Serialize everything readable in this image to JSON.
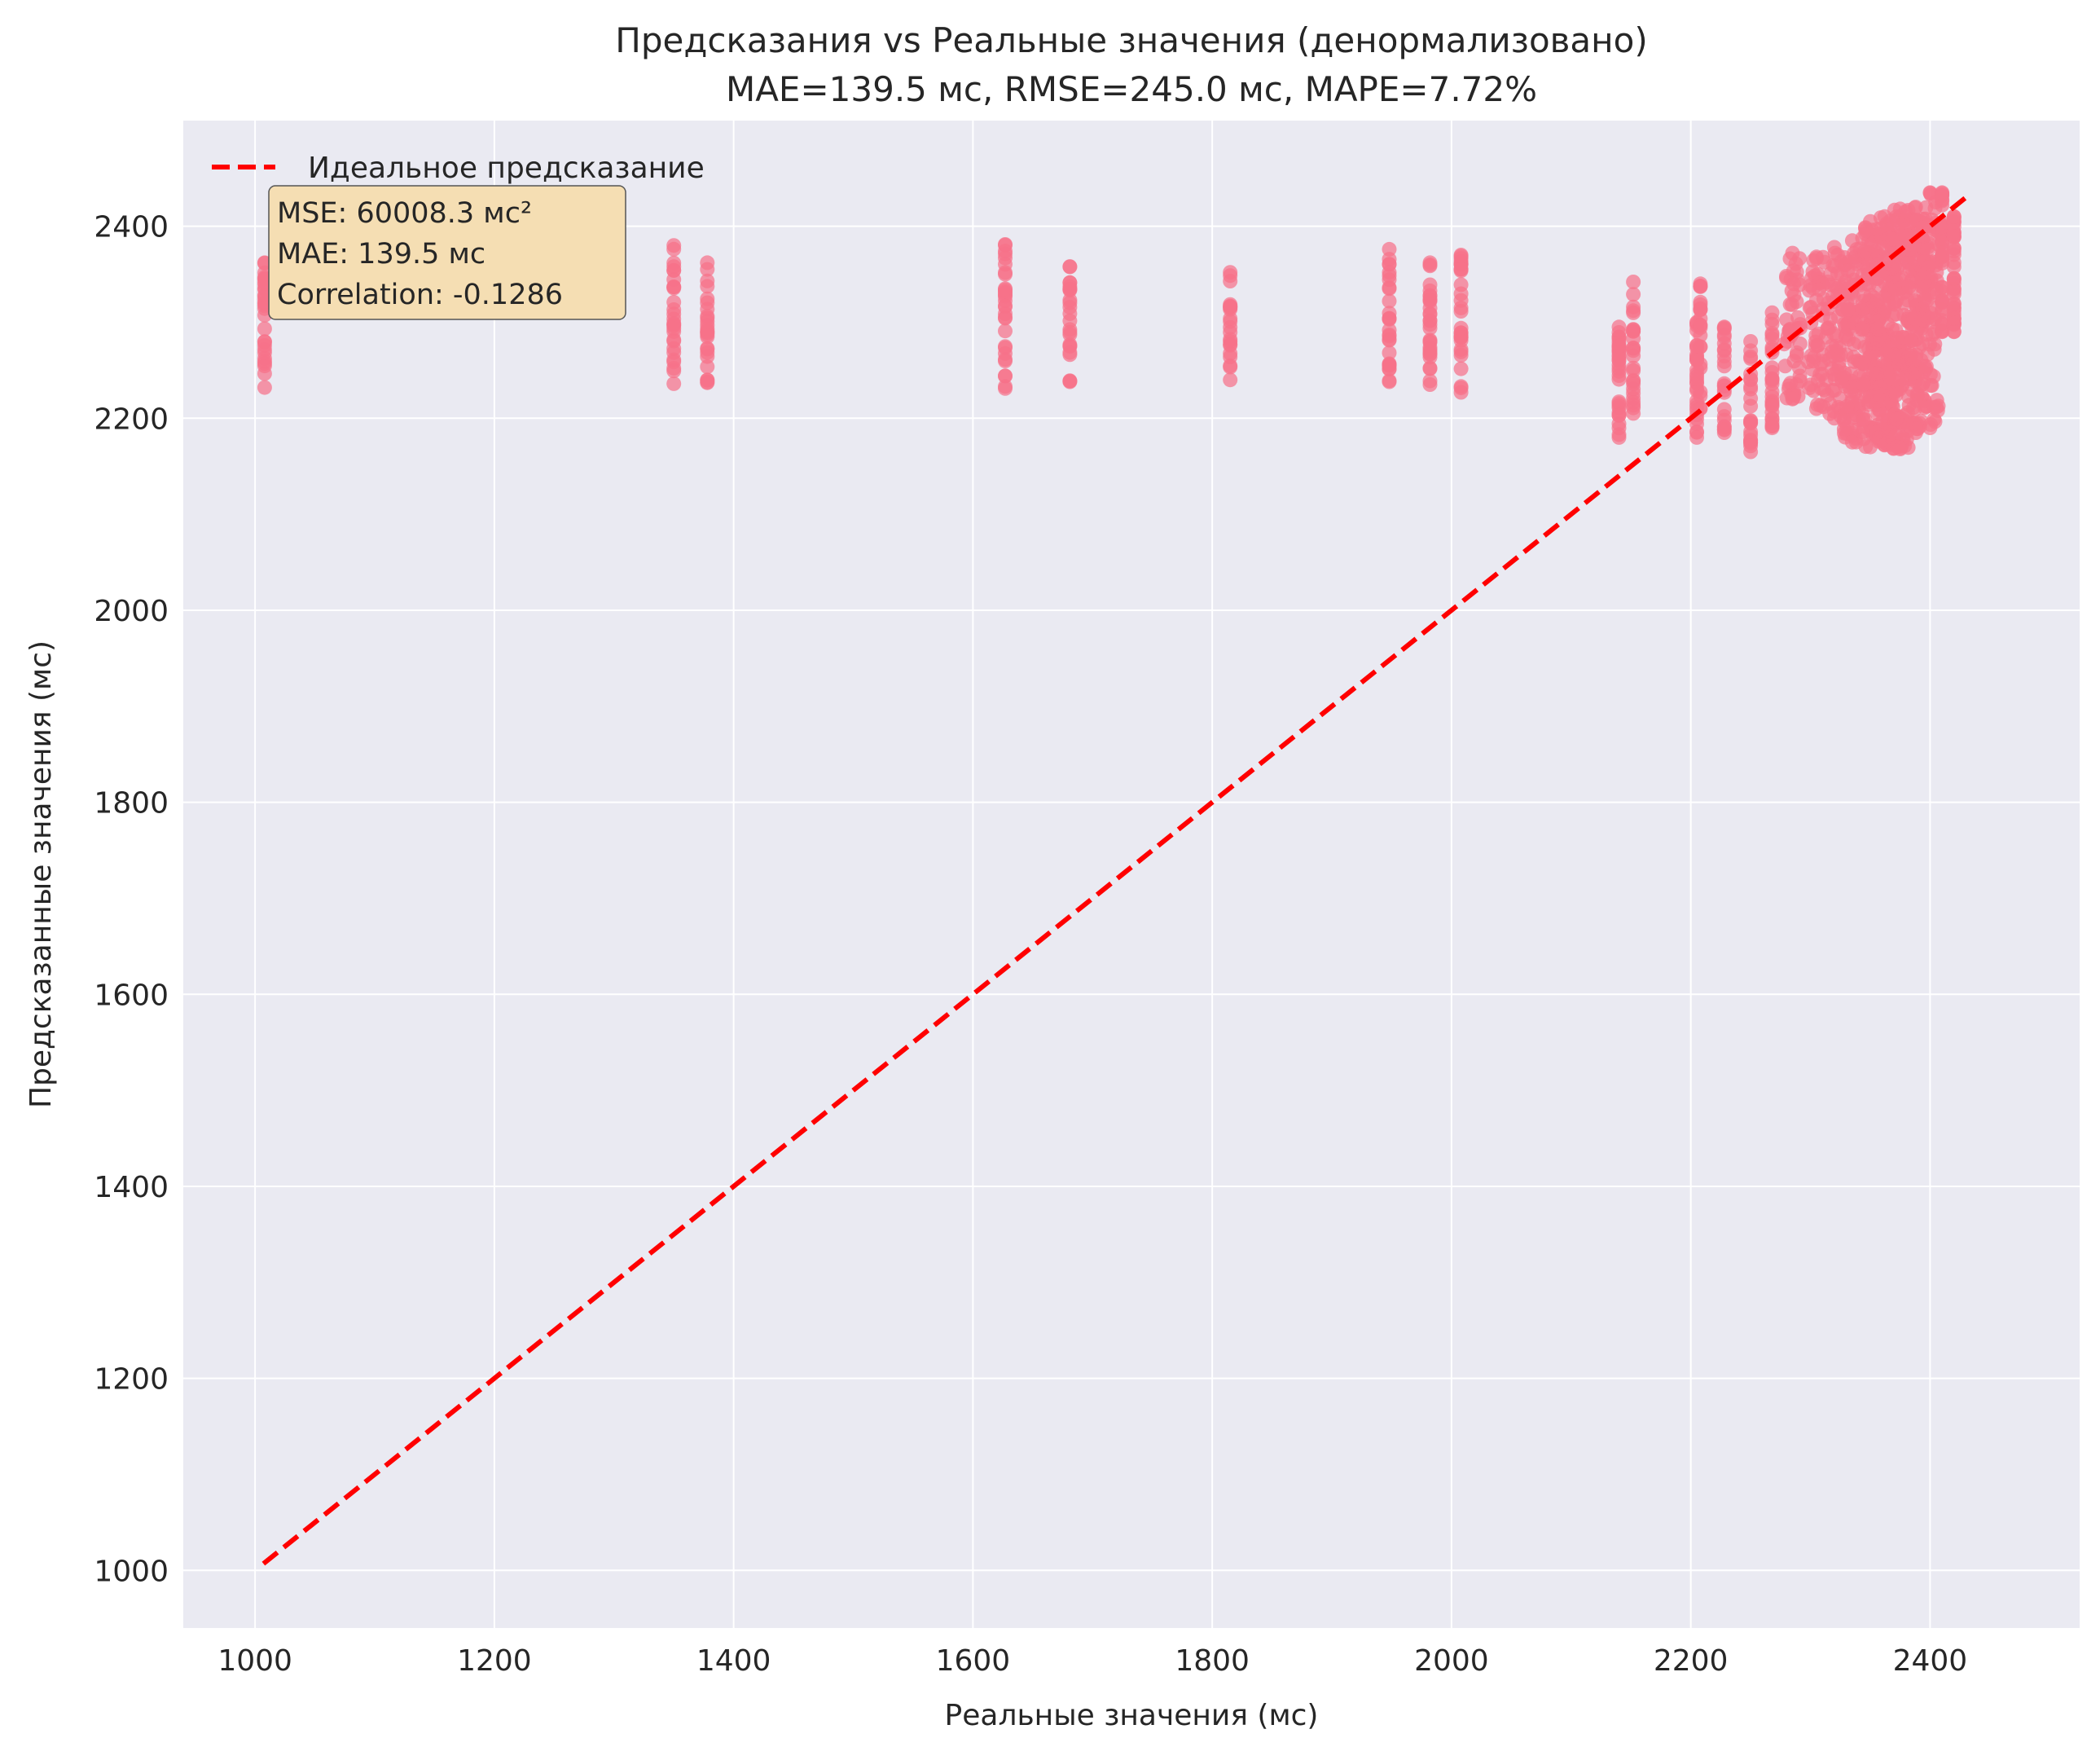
{
  "chart_data": {
    "type": "scatter",
    "title": "Предсказания vs Реальные значения (денормализовано)",
    "subtitle": "MAE=139.5 мс, RMSE=245.0 мс, MAPE=7.72%",
    "xlabel": "Реальные значения (мс)",
    "ylabel": "Предсказанные значения (мс)",
    "xlim": [
      940,
      2525
    ],
    "ylim": [
      940,
      2510
    ],
    "xticks": [
      1000,
      1200,
      1400,
      1600,
      1800,
      2000,
      2200,
      2400
    ],
    "yticks": [
      1000,
      1200,
      1400,
      1600,
      1800,
      2000,
      2200,
      2400
    ],
    "grid": true,
    "legend_position": "top-left",
    "legend": [
      {
        "label": "Идеальное предсказание",
        "style": "dashed",
        "color": "#ff0000"
      }
    ],
    "ideal_line": {
      "x": [
        1007,
        2432
      ],
      "y": [
        1007,
        2432
      ],
      "color": "#ff0000"
    },
    "point_color": "#f77189",
    "stats_box": {
      "lines": [
        "MSE: 60008.3 мс²",
        "MAE: 139.5 мс",
        "Correlation: -0.1286"
      ],
      "background": "#f5deb3"
    },
    "clusters": [
      {
        "x": 1008,
        "y_min": 2232,
        "y_max": 2362,
        "count": 28
      },
      {
        "x": 1350,
        "y_min": 2236,
        "y_max": 2380,
        "count": 26
      },
      {
        "x": 1378,
        "y_min": 2237,
        "y_max": 2362,
        "count": 24
      },
      {
        "x": 1627,
        "y_min": 2231,
        "y_max": 2381,
        "count": 28
      },
      {
        "x": 1681,
        "y_min": 2238,
        "y_max": 2358,
        "count": 22
      },
      {
        "x": 1815,
        "y_min": 2240,
        "y_max": 2352,
        "count": 20
      },
      {
        "x": 1948,
        "y_min": 2238,
        "y_max": 2376,
        "count": 26
      },
      {
        "x": 1982,
        "y_min": 2235,
        "y_max": 2362,
        "count": 28
      },
      {
        "x": 2008,
        "y_min": 2227,
        "y_max": 2370,
        "count": 28
      },
      {
        "x": 2140,
        "y_min": 2180,
        "y_max": 2295,
        "count": 30
      },
      {
        "x": 2152,
        "y_min": 2205,
        "y_max": 2342,
        "count": 24
      },
      {
        "x": 2205,
        "y_min": 2180,
        "y_max": 2300,
        "count": 28
      },
      {
        "x": 2208,
        "y_min": 2210,
        "y_max": 2340,
        "count": 20
      },
      {
        "x": 2228,
        "y_min": 2185,
        "y_max": 2295,
        "count": 22
      },
      {
        "x": 2250,
        "y_min": 2165,
        "y_max": 2280,
        "count": 22
      },
      {
        "x": 2268,
        "y_min": 2190,
        "y_max": 2310,
        "count": 26
      },
      {
        "x": 2285,
        "y_min": 2220,
        "y_max": 2372,
        "count": 50
      },
      {
        "x": 2305,
        "y_min": 2210,
        "y_max": 2368,
        "count": 50
      },
      {
        "x": 2320,
        "y_min": 2200,
        "y_max": 2378,
        "count": 60
      },
      {
        "x": 2335,
        "y_min": 2175,
        "y_max": 2385,
        "count": 90
      },
      {
        "x": 2350,
        "y_min": 2170,
        "y_max": 2405,
        "count": 130
      },
      {
        "x": 2362,
        "y_min": 2172,
        "y_max": 2410,
        "count": 140
      },
      {
        "x": 2375,
        "y_min": 2168,
        "y_max": 2418,
        "count": 130
      },
      {
        "x": 2388,
        "y_min": 2185,
        "y_max": 2420,
        "count": 110
      },
      {
        "x": 2400,
        "y_min": 2190,
        "y_max": 2435,
        "count": 90
      },
      {
        "x": 2410,
        "y_min": 2290,
        "y_max": 2435,
        "count": 40
      },
      {
        "x": 2420,
        "y_min": 2290,
        "y_max": 2410,
        "count": 40
      }
    ]
  }
}
